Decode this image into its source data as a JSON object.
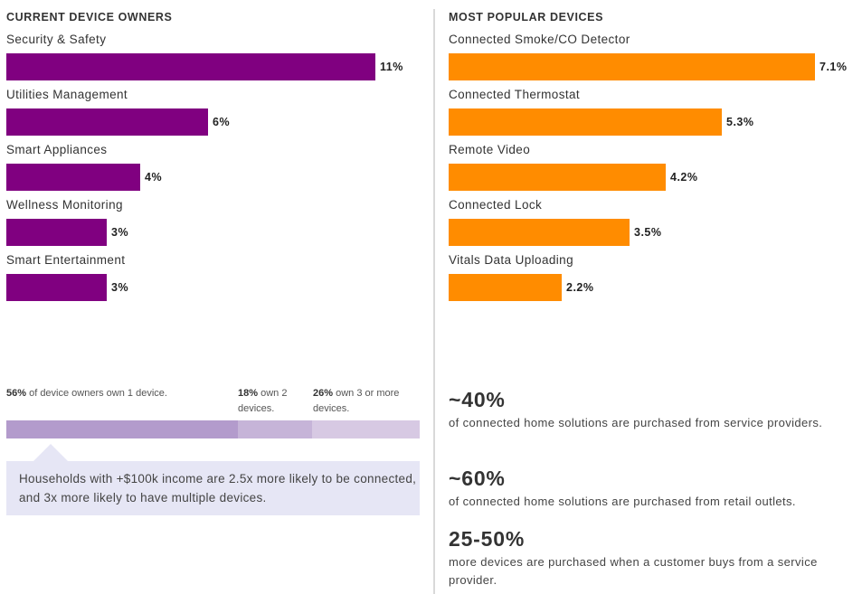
{
  "chart_data": [
    {
      "type": "bar",
      "orientation": "horizontal",
      "title": "CURRENT DEVICE OWNERS",
      "categories": [
        "Security & Safety",
        "Utilities Management",
        "Smart Appliances",
        "Wellness Monitoring",
        "Smart Entertainment"
      ],
      "values": [
        11,
        6,
        4,
        3,
        3
      ],
      "value_labels": [
        "11%",
        "6%",
        "4%",
        "3%",
        "3%"
      ],
      "unit": "%",
      "color": "#800080",
      "xlim": [
        0,
        11
      ]
    },
    {
      "type": "bar",
      "orientation": "horizontal",
      "title": "MOST POPULAR DEVICES",
      "categories": [
        "Connected Smoke/CO Detector",
        "Connected Thermostat",
        "Remote Video",
        "Connected Lock",
        "Vitals Data Uploading"
      ],
      "values": [
        7.1,
        5.3,
        4.2,
        3.5,
        2.2
      ],
      "value_labels": [
        "7.1%",
        "5.3%",
        "4.2%",
        "3.5%",
        "2.2%"
      ],
      "unit": "%",
      "color": "#ff8c00",
      "xlim": [
        0,
        7.1
      ]
    }
  ],
  "ownership": {
    "segments": [
      {
        "pct": "56%",
        "rest": " of device owners own 1 device.",
        "value": 56,
        "color": "#b39bcc"
      },
      {
        "pct": "18%",
        "rest": " own 2 devices.",
        "value": 18,
        "color": "#c6b4d8"
      },
      {
        "pct": "26%",
        "rest": " own 3 or more devices.",
        "value": 26,
        "color": "#d7c9e3"
      }
    ],
    "callout": "Households with +$100k income are 2.5x more likely to be connected, and 3x more likely to have multiple devices."
  },
  "stats": [
    {
      "big": "~40%",
      "text": "of connected home solutions are purchased from service providers."
    },
    {
      "big": "~60%",
      "text": "of connected home solutions are purchased from retail outlets."
    },
    {
      "big": "25-50%",
      "text": "more devices are purchased when a customer buys from a service provider."
    }
  ]
}
